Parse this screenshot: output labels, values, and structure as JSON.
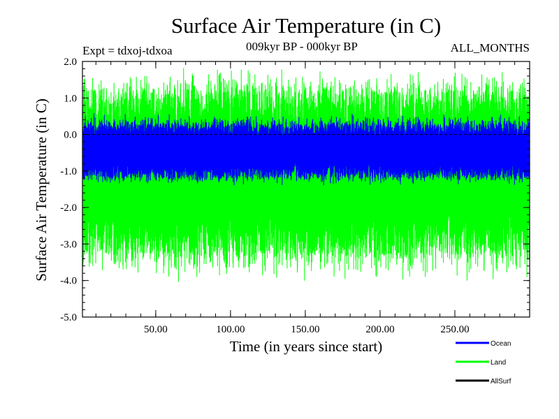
{
  "chart_data": {
    "type": "line",
    "title": "Surface Air Temperature (in C)",
    "subtitle_left": "Expt = tdxoj-tdxoa",
    "subtitle_center": "009kyr BP - 000kyr BP",
    "subtitle_right": "ALL_MONTHS",
    "xlabel": "Time (in years since start)",
    "ylabel": "Surface Air Temperature (in C)",
    "xlim": [
      1,
      300
    ],
    "ylim": [
      -5.0,
      2.0
    ],
    "x_ticks": [
      50,
      100,
      150,
      200,
      250
    ],
    "x_tick_labels": [
      "50.00",
      "100.00",
      "150.00",
      "200.00",
      "250.00"
    ],
    "y_ticks": [
      -5,
      -4,
      -3,
      -2,
      -1,
      0,
      1,
      2
    ],
    "y_tick_labels": [
      "-5.0",
      "-4.0",
      "-3.0",
      "-2.0",
      "-1.0",
      "0.0",
      "1.0",
      "2.0"
    ],
    "reference_line": 0.0,
    "legend_position": "bottom-right",
    "series": [
      {
        "name": "Ocean",
        "color": "#0000ff",
        "band": {
          "center": -0.45,
          "upper": 0.3,
          "lower": -1.2,
          "max": 0.6,
          "min": -1.4
        }
      },
      {
        "name": "Land",
        "color": "#00ff00",
        "band": {
          "center": -1.0,
          "upper": 1.2,
          "lower": -3.3,
          "max": 1.9,
          "min": -4.1
        }
      },
      {
        "name": "AllSurf",
        "color": "#000000",
        "band": null
      }
    ]
  }
}
